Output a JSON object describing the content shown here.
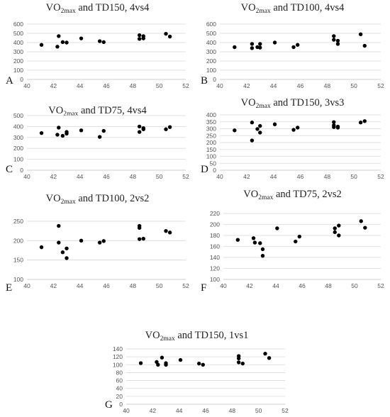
{
  "chart_data": [
    {
      "type": "scatter",
      "letter": "A",
      "title_main": "VO",
      "title_sub": "2max",
      "title_rest": " and TD150, 4vs4",
      "xlim": [
        40,
        52
      ],
      "xticks": [
        40,
        42,
        44,
        46,
        48,
        50,
        52
      ],
      "ylim": [
        0,
        600
      ],
      "yticks": [
        0,
        100,
        200,
        300,
        400,
        500,
        600
      ],
      "grid": true,
      "points": [
        [
          41.1,
          375
        ],
        [
          42.3,
          355
        ],
        [
          42.4,
          470
        ],
        [
          42.7,
          405
        ],
        [
          43.0,
          400
        ],
        [
          44.1,
          445
        ],
        [
          45.5,
          415
        ],
        [
          45.8,
          405
        ],
        [
          48.5,
          440
        ],
        [
          48.5,
          480
        ],
        [
          48.8,
          445
        ],
        [
          48.8,
          470
        ],
        [
          50.5,
          495
        ],
        [
          50.8,
          465
        ]
      ]
    },
    {
      "type": "scatter",
      "letter": "B",
      "title_main": "VO",
      "title_sub": "2max",
      "title_rest": " and TD100, 4vs4",
      "xlim": [
        40,
        52
      ],
      "xticks": [
        40,
        42,
        44,
        46,
        48,
        50,
        52
      ],
      "ylim": [
        0,
        600
      ],
      "yticks": [
        0,
        100,
        200,
        300,
        400,
        500,
        600
      ],
      "grid": true,
      "points": [
        [
          41.1,
          350
        ],
        [
          42.4,
          385
        ],
        [
          42.4,
          340
        ],
        [
          42.8,
          350
        ],
        [
          43.0,
          385
        ],
        [
          43.0,
          345
        ],
        [
          44.1,
          400
        ],
        [
          45.5,
          350
        ],
        [
          45.8,
          375
        ],
        [
          48.5,
          470
        ],
        [
          48.5,
          430
        ],
        [
          48.8,
          420
        ],
        [
          48.8,
          385
        ],
        [
          50.5,
          490
        ],
        [
          50.8,
          365
        ]
      ]
    },
    {
      "type": "scatter",
      "letter": "C",
      "title_main": "VO",
      "title_sub": "2max",
      "title_rest": " and TD75, 4vs4",
      "xlim": [
        40,
        52
      ],
      "xticks": [
        40,
        42,
        44,
        46,
        48,
        50,
        52
      ],
      "ylim": [
        0,
        500
      ],
      "yticks": [
        0,
        100,
        200,
        300,
        400,
        500
      ],
      "grid": true,
      "points": [
        [
          41.1,
          340
        ],
        [
          42.3,
          325
        ],
        [
          42.4,
          390
        ],
        [
          42.7,
          315
        ],
        [
          43.0,
          350
        ],
        [
          43.0,
          335
        ],
        [
          44.1,
          365
        ],
        [
          45.5,
          305
        ],
        [
          45.8,
          360
        ],
        [
          48.5,
          400
        ],
        [
          48.5,
          350
        ],
        [
          48.8,
          385
        ],
        [
          48.8,
          375
        ],
        [
          50.5,
          375
        ],
        [
          50.8,
          395
        ]
      ]
    },
    {
      "type": "scatter",
      "letter": "D",
      "title_main": "VO",
      "title_sub": "2max",
      "title_rest": " and TD150, 3vs3",
      "xlim": [
        40,
        52
      ],
      "xticks": [
        40,
        42,
        44,
        46,
        48,
        50,
        52
      ],
      "ylim": [
        0,
        400
      ],
      "yticks": [
        0,
        50,
        100,
        150,
        200,
        250,
        300,
        350,
        400
      ],
      "grid": true,
      "points": [
        [
          41.1,
          288
        ],
        [
          42.4,
          345
        ],
        [
          42.4,
          215
        ],
        [
          42.8,
          298
        ],
        [
          43.0,
          320
        ],
        [
          43.0,
          272
        ],
        [
          44.1,
          332
        ],
        [
          45.5,
          292
        ],
        [
          45.8,
          308
        ],
        [
          48.5,
          348
        ],
        [
          48.5,
          325
        ],
        [
          48.5,
          312
        ],
        [
          48.8,
          315
        ],
        [
          48.8,
          308
        ],
        [
          50.5,
          345
        ],
        [
          50.8,
          355
        ]
      ]
    },
    {
      "type": "scatter",
      "letter": "E",
      "title_main": "VO",
      "title_sub": "2max",
      "title_rest": " and TD100, 2vs2",
      "xlim": [
        40,
        52
      ],
      "xticks": [
        40,
        42,
        44,
        46,
        48,
        50,
        52
      ],
      "ylim": [
        100,
        250
      ],
      "yticks": [
        100,
        150,
        200,
        250
      ],
      "grid": true,
      "points": [
        [
          41.1,
          183
        ],
        [
          42.4,
          238
        ],
        [
          42.4,
          195
        ],
        [
          42.7,
          170
        ],
        [
          43.0,
          180
        ],
        [
          43.0,
          155
        ],
        [
          44.1,
          200
        ],
        [
          45.5,
          195
        ],
        [
          45.8,
          199
        ],
        [
          48.5,
          238
        ],
        [
          48.5,
          233
        ],
        [
          48.5,
          204
        ],
        [
          48.8,
          205
        ],
        [
          50.5,
          225
        ],
        [
          50.8,
          221
        ]
      ]
    },
    {
      "type": "scatter",
      "letter": "F",
      "title_main": "VO",
      "title_sub": "2max",
      "title_rest": " and TD75, 2vs2",
      "xlim": [
        40,
        52
      ],
      "xticks": [
        40,
        42,
        44,
        46,
        48,
        50,
        52
      ],
      "ylim": [
        100,
        220
      ],
      "yticks": [
        100,
        120,
        140,
        160,
        180,
        200,
        220
      ],
      "grid": true,
      "points": [
        [
          41.1,
          172
        ],
        [
          42.3,
          175
        ],
        [
          42.4,
          167
        ],
        [
          42.8,
          166
        ],
        [
          43.0,
          155
        ],
        [
          43.0,
          143
        ],
        [
          44.1,
          193
        ],
        [
          45.5,
          169
        ],
        [
          45.8,
          178
        ],
        [
          48.5,
          193
        ],
        [
          48.5,
          186
        ],
        [
          48.8,
          198
        ],
        [
          48.8,
          180
        ],
        [
          50.5,
          206
        ],
        [
          50.8,
          194
        ]
      ]
    },
    {
      "type": "scatter",
      "letter": "G",
      "title_main": "VO",
      "title_sub": "2max",
      "title_rest": " and TD150, 1vs1",
      "xlim": [
        40,
        52
      ],
      "xticks": [
        40,
        42,
        44,
        46,
        48,
        50,
        52
      ],
      "ylim": [
        0,
        140
      ],
      "yticks": [
        0,
        20,
        40,
        60,
        80,
        100,
        120,
        140
      ],
      "grid": true,
      "points": [
        [
          41.1,
          104
        ],
        [
          42.3,
          107
        ],
        [
          42.4,
          100
        ],
        [
          42.7,
          118
        ],
        [
          43.0,
          104
        ],
        [
          43.0,
          100
        ],
        [
          44.1,
          112
        ],
        [
          45.5,
          103
        ],
        [
          45.8,
          100
        ],
        [
          48.5,
          122
        ],
        [
          48.5,
          116
        ],
        [
          48.5,
          106
        ],
        [
          48.8,
          103
        ],
        [
          50.5,
          128
        ],
        [
          50.8,
          117
        ]
      ]
    }
  ]
}
